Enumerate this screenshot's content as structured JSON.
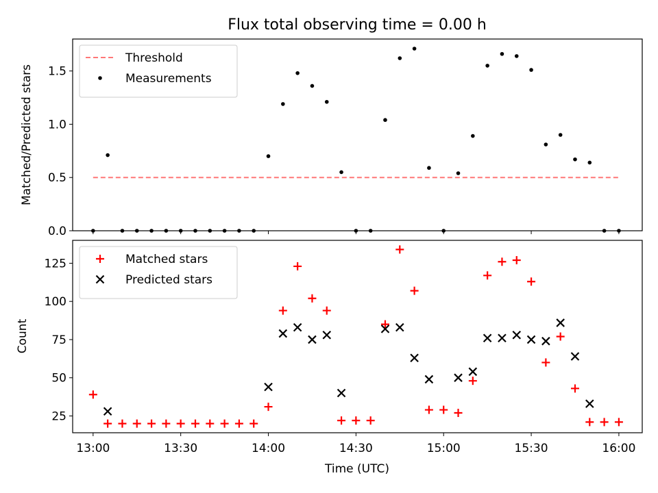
{
  "chart_data": [
    {
      "type": "scatter",
      "title": "Flux total observing time = 0.00 h",
      "xlabel": "",
      "ylabel": "Matched/Predicted stars",
      "ylim": [
        0,
        1.8
      ],
      "yticks": [
        "0.0",
        "0.5",
        "1.0",
        "1.5"
      ],
      "xlim": [
        "12:53",
        "16:08"
      ],
      "legend_position": "upper-left",
      "threshold": {
        "name": "Threshold",
        "value": 0.5,
        "x_range": [
          "13:00",
          "16:00"
        ],
        "color": "#ff7777",
        "style": "dashed"
      },
      "series": [
        {
          "name": "Measurements",
          "color": "#000000",
          "marker": "dot",
          "points": [
            [
              "13:00",
              0.0
            ],
            [
              "13:05",
              0.71
            ],
            [
              "13:10",
              0.0
            ],
            [
              "13:15",
              0.0
            ],
            [
              "13:20",
              0.0
            ],
            [
              "13:25",
              0.0
            ],
            [
              "13:30",
              0.0
            ],
            [
              "13:35",
              0.0
            ],
            [
              "13:40",
              0.0
            ],
            [
              "13:45",
              0.0
            ],
            [
              "13:50",
              0.0
            ],
            [
              "13:55",
              0.0
            ],
            [
              "14:00",
              0.7
            ],
            [
              "14:05",
              1.19
            ],
            [
              "14:10",
              1.48
            ],
            [
              "14:15",
              1.36
            ],
            [
              "14:20",
              1.21
            ],
            [
              "14:25",
              0.55
            ],
            [
              "14:30",
              0.0
            ],
            [
              "14:35",
              0.0
            ],
            [
              "14:40",
              1.04
            ],
            [
              "14:45",
              1.62
            ],
            [
              "14:50",
              1.71
            ],
            [
              "14:55",
              0.59
            ],
            [
              "15:00",
              0.0
            ],
            [
              "15:05",
              0.54
            ],
            [
              "15:10",
              0.89
            ],
            [
              "15:15",
              1.55
            ],
            [
              "15:20",
              1.66
            ],
            [
              "15:25",
              1.64
            ],
            [
              "15:30",
              1.51
            ],
            [
              "15:35",
              0.81
            ],
            [
              "15:40",
              0.9
            ],
            [
              "15:45",
              0.67
            ],
            [
              "15:50",
              0.64
            ],
            [
              "15:55",
              0.0
            ],
            [
              "16:00",
              0.0
            ]
          ]
        }
      ]
    },
    {
      "type": "scatter",
      "title": "",
      "xlabel": "Time (UTC)",
      "ylabel": "Count",
      "ylim": [
        14,
        140
      ],
      "yticks": [
        25,
        50,
        75,
        100,
        125
      ],
      "xlim": [
        "12:53",
        "16:08"
      ],
      "xticks": [
        "13:00",
        "13:30",
        "14:00",
        "14:30",
        "15:00",
        "15:30",
        "16:00"
      ],
      "legend_position": "upper-left",
      "series": [
        {
          "name": "Matched stars",
          "color": "#ff0000",
          "marker": "plus",
          "points": [
            [
              "13:00",
              39
            ],
            [
              "13:05",
              20
            ],
            [
              "13:10",
              20
            ],
            [
              "13:15",
              20
            ],
            [
              "13:20",
              20
            ],
            [
              "13:25",
              20
            ],
            [
              "13:30",
              20
            ],
            [
              "13:35",
              20
            ],
            [
              "13:40",
              20
            ],
            [
              "13:45",
              20
            ],
            [
              "13:50",
              20
            ],
            [
              "13:55",
              20
            ],
            [
              "14:00",
              31
            ],
            [
              "14:05",
              94
            ],
            [
              "14:10",
              123
            ],
            [
              "14:15",
              102
            ],
            [
              "14:20",
              94
            ],
            [
              "14:25",
              22
            ],
            [
              "14:30",
              22
            ],
            [
              "14:35",
              22
            ],
            [
              "14:40",
              85
            ],
            [
              "14:45",
              134
            ],
            [
              "14:50",
              107
            ],
            [
              "14:55",
              29
            ],
            [
              "15:00",
              29
            ],
            [
              "15:05",
              27
            ],
            [
              "15:10",
              48
            ],
            [
              "15:15",
              117
            ],
            [
              "15:20",
              126
            ],
            [
              "15:25",
              127
            ],
            [
              "15:30",
              113
            ],
            [
              "15:35",
              60
            ],
            [
              "15:40",
              77
            ],
            [
              "15:45",
              43
            ],
            [
              "15:50",
              21
            ],
            [
              "15:55",
              21
            ],
            [
              "16:00",
              21
            ]
          ]
        },
        {
          "name": "Predicted stars",
          "color": "#000000",
          "marker": "x",
          "points": [
            [
              "13:05",
              28
            ],
            [
              "14:00",
              44
            ],
            [
              "14:05",
              79
            ],
            [
              "14:10",
              83
            ],
            [
              "14:15",
              75
            ],
            [
              "14:20",
              78
            ],
            [
              "14:25",
              40
            ],
            [
              "14:40",
              82
            ],
            [
              "14:45",
              83
            ],
            [
              "14:50",
              63
            ],
            [
              "14:55",
              49
            ],
            [
              "15:05",
              50
            ],
            [
              "15:10",
              54
            ],
            [
              "15:15",
              76
            ],
            [
              "15:20",
              76
            ],
            [
              "15:25",
              78
            ],
            [
              "15:30",
              75
            ],
            [
              "15:35",
              74
            ],
            [
              "15:40",
              86
            ],
            [
              "15:45",
              64
            ],
            [
              "15:50",
              33
            ]
          ]
        }
      ]
    }
  ]
}
